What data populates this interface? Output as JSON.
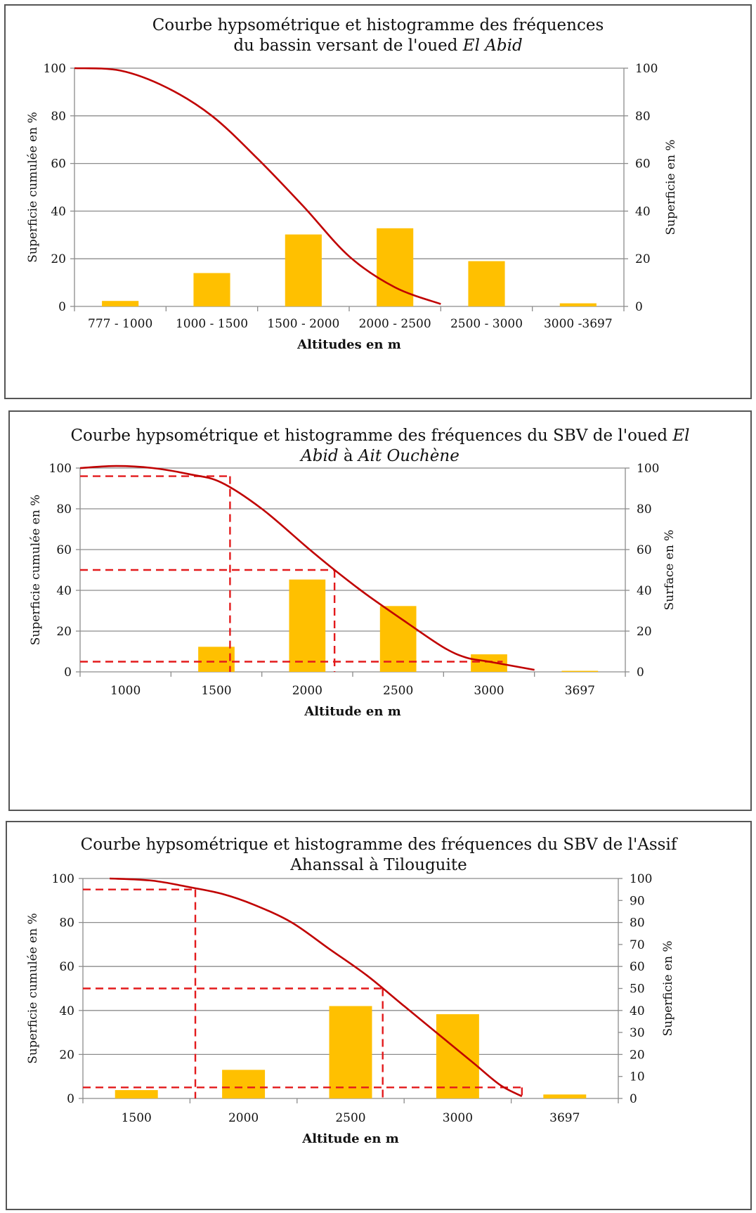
{
  "charts": [
    {
      "title_l1": "Courbe hypsométrique et histogramme des fréquences",
      "title_l2a": "du bassin versant de l'oued ",
      "title_l2b": "El Abid",
      "title_l2c": "",
      "title_l2d": ""
    },
    {
      "title_l1a": "Courbe hypsométrique et histogramme des fréquences du SBV de l'oued ",
      "title_l1b": "El",
      "title_l2a": "Abid",
      "title_l2b": " à ",
      "title_l2c": "Ait Ouchène"
    },
    {
      "title_l1": "Courbe hypsométrique et histogramme des fréquences du SBV de l'Assif",
      "title_l2": "Ahanssal à Tilouguite"
    }
  ],
  "chart_data": [
    {
      "type": "bar",
      "categories": [
        "777 - 1000",
        "1000 - 1500",
        "1500 - 2000",
        "2000 - 2500",
        "2500 - 3000",
        "3000 -3697"
      ],
      "series": [
        {
          "name": "Superficie en %",
          "kind": "bar",
          "axis": "right",
          "color": "#FFC000",
          "values": [
            2.3,
            14,
            30.2,
            32.8,
            19,
            1.3
          ]
        },
        {
          "name": "Superficie cumulée en %",
          "kind": "line",
          "axis": "left",
          "color": "#C00000",
          "points": [
            [
              0,
              100
            ],
            [
              1,
              99
            ],
            [
              2,
              92
            ],
            [
              3,
              80
            ],
            [
              4,
              62
            ],
            [
              5,
              42
            ],
            [
              6,
              21
            ],
            [
              7,
              8
            ],
            [
              8,
              1
            ]
          ]
        }
      ],
      "xlabel": "Altitudes en m",
      "ylabel_left": "Superficie  cumulée en %",
      "ylabel_right": "Superficie en %",
      "ylim_left": [
        0,
        100
      ],
      "ylim_right": [
        0,
        100
      ],
      "left_ticks": [
        0,
        20,
        40,
        60,
        80,
        100
      ],
      "right_ticks": [
        0,
        20,
        40,
        60,
        80,
        100
      ],
      "grid": true
    },
    {
      "type": "bar",
      "categories": [
        "1000",
        "1500",
        "2000",
        "2500",
        "3000",
        "3697"
      ],
      "series": [
        {
          "name": "Surface en %",
          "kind": "bar",
          "axis": "right",
          "color": "#FFC000",
          "values": [
            0,
            12.3,
            45.3,
            32.3,
            8.6,
            0.5
          ]
        },
        {
          "name": "Superficie cumulée en %",
          "kind": "line",
          "axis": "left",
          "color": "#C00000",
          "points": [
            [
              0,
              100
            ],
            [
              0.8,
              101
            ],
            [
              1.6,
              100
            ],
            [
              2.4,
              97
            ],
            [
              3.1,
              93
            ],
            [
              4,
              80
            ],
            [
              5,
              61
            ],
            [
              5.6,
              50
            ],
            [
              6.3,
              38
            ],
            [
              7.2,
              24
            ],
            [
              8,
              12
            ],
            [
              8.5,
              7
            ],
            [
              9,
              5
            ],
            [
              10,
              1
            ]
          ]
        }
      ],
      "reference_lines": [
        {
          "y": 96,
          "x_end": 3.3
        },
        {
          "y": 50,
          "x_end": 5.6
        },
        {
          "y": 5,
          "x_end": 9.3
        }
      ],
      "reference_vlines": [
        3.3,
        5.6
      ],
      "xlabel": "Altitude en m",
      "ylabel_left": "Superficie  cumulée en %",
      "ylabel_right": "Surface en %",
      "ylim_left": [
        0,
        100
      ],
      "ylim_right": [
        0,
        100
      ],
      "left_ticks": [
        0,
        20,
        40,
        60,
        80,
        100
      ],
      "right_ticks": [
        0,
        20,
        40,
        60,
        80,
        100
      ],
      "grid": true
    },
    {
      "type": "bar",
      "categories": [
        "1500",
        "2000",
        "2500",
        "3000",
        "3697"
      ],
      "series": [
        {
          "name": "Superficie en %",
          "kind": "bar",
          "axis": "right",
          "color": "#FFC000",
          "values": [
            3.8,
            13,
            42,
            38.3,
            1.8
          ]
        },
        {
          "name": "Superficie cumulée en %",
          "kind": "line",
          "axis": "left",
          "color": "#C00000",
          "points": [
            [
              0.5,
              100
            ],
            [
              1.3,
              99
            ],
            [
              2,
              96
            ],
            [
              2.6,
              93
            ],
            [
              3.2,
              88
            ],
            [
              3.9,
              80
            ],
            [
              4.6,
              68
            ],
            [
              5.3,
              56
            ],
            [
              6,
              42
            ],
            [
              6.7,
              28
            ],
            [
              7.3,
              16
            ],
            [
              7.8,
              6
            ],
            [
              8.2,
              1
            ]
          ]
        }
      ],
      "reference_lines": [
        {
          "y": 95,
          "x_end": 2.1
        },
        {
          "y": 50,
          "x_end": 5.6
        },
        {
          "y": 5,
          "x_end": 8.2
        }
      ],
      "reference_vlines": [
        2.1,
        5.6,
        8.2
      ],
      "xlabel": "Altitude en m",
      "ylabel_left": "Superficie  cumulée en %",
      "ylabel_right": "Superficie en %",
      "ylim_left": [
        0,
        100
      ],
      "ylim_right": [
        0,
        100
      ],
      "left_ticks": [
        0,
        20,
        40,
        60,
        80,
        100
      ],
      "right_ticks": [
        0,
        10,
        20,
        30,
        40,
        50,
        60,
        70,
        80,
        90,
        100
      ],
      "grid": true
    }
  ]
}
